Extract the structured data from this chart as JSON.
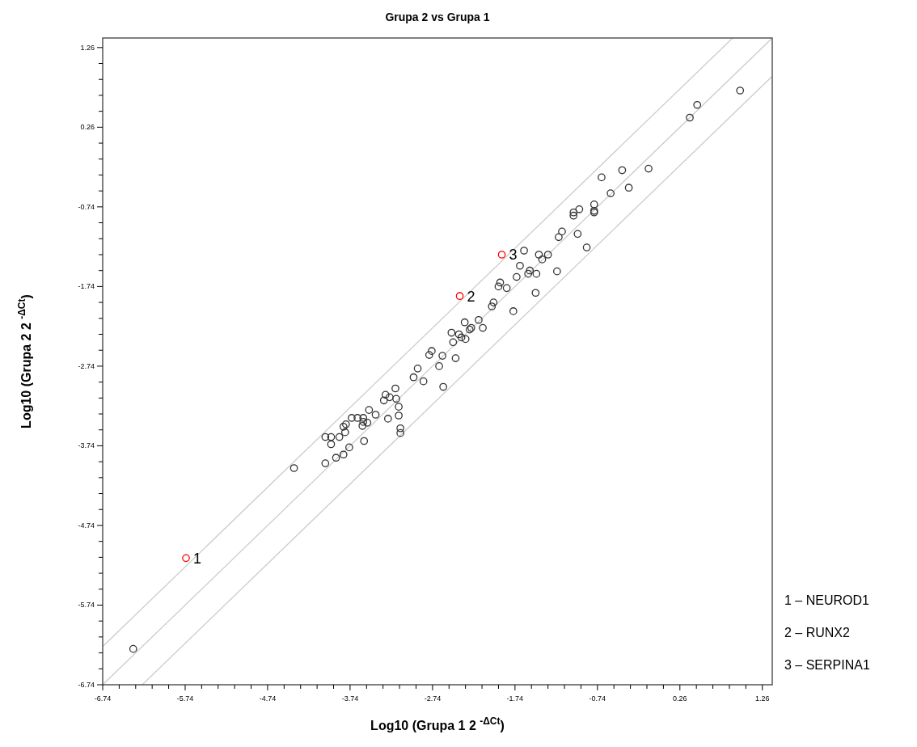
{
  "chart_data": {
    "type": "scatter",
    "title": "Grupa 2 vs Grupa 1",
    "xlabel": "Log10 (Grupa 1 2 $^{-ΔCt}$)",
    "ylabel": "Log10 (Grupa 2 2 $^{-ΔCt}$)",
    "xlim": [
      -6.74,
      1.38
    ],
    "ylim": [
      -6.74,
      1.38
    ],
    "xticks": [
      -6.74,
      {
        "value": -6.54,
        "label": null
      },
      {
        "value": -6.34,
        "label": null
      },
      {
        "value": -6.14,
        "label": null
      },
      {
        "value": -5.94,
        "label": null
      },
      -5.74,
      {
        "value": -5.54,
        "label": null
      },
      {
        "value": -5.34,
        "label": null
      },
      {
        "value": -5.14,
        "label": null
      },
      {
        "value": -4.94,
        "label": null
      },
      -4.74,
      {
        "value": -4.54,
        "label": null
      },
      {
        "value": -4.34,
        "label": null
      },
      {
        "value": -4.14,
        "label": null
      },
      {
        "value": -3.94,
        "label": null
      },
      -3.74,
      {
        "value": -3.54,
        "label": null
      },
      {
        "value": -3.34,
        "label": null
      },
      {
        "value": -3.14,
        "label": null
      },
      {
        "value": -2.94,
        "label": null
      },
      -2.74,
      {
        "value": -2.54,
        "label": null
      },
      {
        "value": -2.34,
        "label": null
      },
      {
        "value": -2.14,
        "label": null
      },
      {
        "value": -1.94,
        "label": null
      },
      -1.74,
      {
        "value": -1.54,
        "label": null
      },
      {
        "value": -1.34,
        "label": null
      },
      {
        "value": -1.14,
        "label": null
      },
      {
        "value": -0.94,
        "label": null
      },
      -0.74,
      {
        "value": -0.54,
        "label": null
      },
      {
        "value": -0.34,
        "label": null
      },
      {
        "value": -0.14,
        "label": null
      },
      {
        "value": 0.06,
        "label": null
      },
      0.26,
      {
        "value": 0.46,
        "label": null
      },
      {
        "value": 0.66,
        "label": null
      },
      {
        "value": 0.86,
        "label": null
      },
      {
        "value": 1.06,
        "label": null
      },
      1.26
    ],
    "yticks": [
      -6.74,
      {
        "value": -6.54,
        "label": null
      },
      {
        "value": -6.34,
        "label": null
      },
      {
        "value": -6.14,
        "label": null
      },
      {
        "value": -5.94,
        "label": null
      },
      -5.74,
      {
        "value": -5.54,
        "label": null
      },
      {
        "value": -5.34,
        "label": null
      },
      {
        "value": -5.14,
        "label": null
      },
      {
        "value": -4.94,
        "label": null
      },
      -4.74,
      {
        "value": -4.54,
        "label": null
      },
      {
        "value": -4.34,
        "label": null
      },
      {
        "value": -4.14,
        "label": null
      },
      {
        "value": -3.94,
        "label": null
      },
      -3.74,
      {
        "value": -3.54,
        "label": null
      },
      {
        "value": -3.34,
        "label": null
      },
      {
        "value": -3.14,
        "label": null
      },
      {
        "value": -2.94,
        "label": null
      },
      -2.74,
      {
        "value": -2.54,
        "label": null
      },
      {
        "value": -2.34,
        "label": null
      },
      {
        "value": -2.14,
        "label": null
      },
      {
        "value": -1.94,
        "label": null
      },
      -1.74,
      {
        "value": -1.54,
        "label": null
      },
      {
        "value": -1.34,
        "label": null
      },
      {
        "value": -1.14,
        "label": null
      },
      {
        "value": -0.94,
        "label": null
      },
      -0.74,
      {
        "value": -0.54,
        "label": null
      },
      {
        "value": -0.34,
        "label": null
      },
      {
        "value": -0.14,
        "label": null
      },
      {
        "value": 0.06,
        "label": null
      },
      0.26,
      {
        "value": 0.46,
        "label": null
      },
      {
        "value": 0.66,
        "label": null
      },
      {
        "value": 0.86,
        "label": null
      },
      {
        "value": 1.06,
        "label": null
      },
      1.26
    ],
    "grid": false,
    "marker": "circle",
    "series": [
      {
        "type": "line",
        "color": "#cccccc",
        "marker": "none",
        "x": [
          -6.74,
          0.9
        ],
        "values": [
          -6.26,
          1.38
        ]
      },
      {
        "type": "line",
        "color": "#cccccc",
        "marker": "none",
        "x": [
          -6.74,
          1.38
        ],
        "values": [
          -6.74,
          1.38
        ]
      },
      {
        "type": "line",
        "color": "#cccccc",
        "marker": "none",
        "x": [
          -6.26,
          1.38
        ],
        "values": [
          -6.74,
          0.9
        ]
      },
      {
        "color": "#333333",
        "x": [
          0.99,
          0.47,
          0.38,
          -0.12,
          -0.44,
          -0.69,
          -0.36,
          -0.58,
          -0.78,
          -0.78,
          -0.78,
          -0.96,
          -1.03,
          -1.03,
          -1.17,
          -1.21,
          -0.98,
          -0.87,
          -1.63,
          -1.45,
          -1.34,
          -1.41,
          -1.68,
          -1.56,
          -1.58,
          -1.48,
          -1.23,
          -1.72,
          -1.92,
          -1.94,
          -1.84,
          -1.49,
          -2.0,
          -2.02,
          -1.76,
          -2.18,
          -2.13,
          -2.35,
          -2.27,
          -2.29,
          -2.51,
          -2.42,
          -2.39,
          -2.34,
          -2.49,
          -2.75,
          -2.78,
          -2.62,
          -2.46,
          -2.66,
          -2.61,
          -2.92,
          -2.97,
          -2.85,
          -3.19,
          -3.31,
          -3.26,
          -3.33,
          -3.18,
          -3.15,
          -3.51,
          -3.43,
          -3.15,
          -3.28,
          -3.72,
          -3.65,
          -3.58,
          -3.58,
          -3.53,
          -3.59,
          -3.79,
          -3.82,
          -3.8,
          -4.04,
          -3.97,
          -3.87,
          -3.97,
          -3.57,
          -3.13,
          -3.13,
          -3.75,
          -3.82,
          -3.91,
          -4.04,
          -4.42,
          -6.37
        ],
        "values": [
          0.72,
          0.54,
          0.38,
          -0.26,
          -0.28,
          -0.37,
          -0.5,
          -0.57,
          -0.71,
          -0.81,
          -0.79,
          -0.77,
          -0.81,
          -0.85,
          -1.05,
          -1.12,
          -1.08,
          -1.25,
          -1.29,
          -1.34,
          -1.34,
          -1.4,
          -1.48,
          -1.54,
          -1.58,
          -1.58,
          -1.55,
          -1.62,
          -1.69,
          -1.74,
          -1.76,
          -1.82,
          -1.94,
          -1.99,
          -2.05,
          -2.16,
          -2.26,
          -2.19,
          -2.26,
          -2.28,
          -2.32,
          -2.34,
          -2.38,
          -2.4,
          -2.44,
          -2.55,
          -2.6,
          -2.61,
          -2.64,
          -2.74,
          -3.0,
          -2.77,
          -2.88,
          -2.93,
          -3.02,
          -3.1,
          -3.13,
          -3.17,
          -3.15,
          -3.25,
          -3.29,
          -3.35,
          -3.36,
          -3.4,
          -3.39,
          -3.39,
          -3.39,
          -3.44,
          -3.45,
          -3.49,
          -3.47,
          -3.5,
          -3.57,
          -3.63,
          -3.63,
          -3.63,
          -3.72,
          -3.68,
          -3.52,
          -3.58,
          -3.76,
          -3.85,
          -3.89,
          -3.96,
          -4.02,
          -6.29
        ]
      },
      {
        "color": "#ff0000",
        "x": [
          -5.73,
          -2.41,
          -1.9
        ],
        "values": [
          -5.15,
          -1.86,
          -1.34
        ]
      }
    ],
    "annotations": [
      {
        "text": "1",
        "x": -5.73,
        "y": -5.15
      },
      {
        "text": "2",
        "x": -2.41,
        "y": -1.86
      },
      {
        "text": "3",
        "x": -1.9,
        "y": -1.34
      },
      "1 – NEUROD1",
      "2 – RUNX2",
      "3 – SERPINA1"
    ]
  }
}
